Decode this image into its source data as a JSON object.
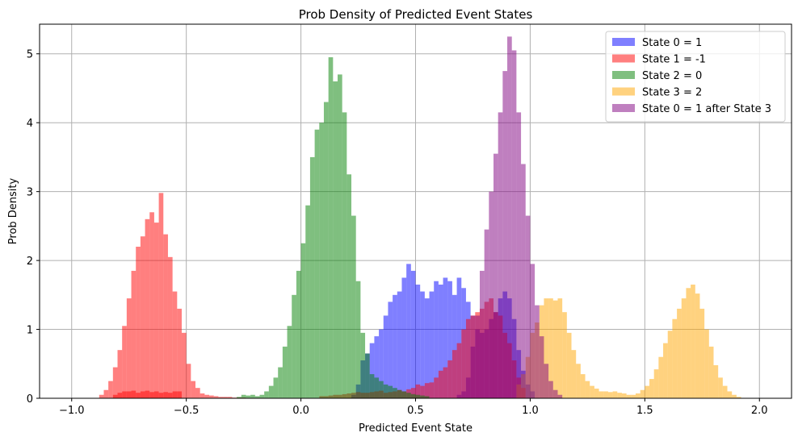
{
  "chart_data": {
    "type": "histogram",
    "title": "Prob Density of Predicted Event States",
    "xlabel": "Predicted Event State",
    "ylabel": "Prob Density",
    "xlim": [
      -1.14,
      2.14
    ],
    "ylim": [
      0,
      5.43
    ],
    "xticks": [
      -1.0,
      -0.5,
      0.0,
      0.5,
      1.0,
      1.5,
      2.0
    ],
    "xtick_labels": [
      "−1.0",
      "−0.5",
      "0.0",
      "0.5",
      "1.0",
      "1.5",
      "2.0"
    ],
    "yticks": [
      0,
      1,
      2,
      3,
      4,
      5
    ],
    "ytick_labels": [
      "0",
      "1",
      "2",
      "3",
      "4",
      "5"
    ],
    "grid": true,
    "legend_position": "top-right",
    "bin_width": 0.02,
    "series": [
      {
        "name": "State 0 = 1",
        "color": "#0000ff",
        "opacity": 0.5,
        "bin_start": 0.22,
        "values": [
          0.05,
          0.2,
          0.55,
          0.65,
          0.8,
          0.9,
          1.0,
          1.2,
          1.4,
          1.5,
          1.55,
          1.75,
          1.95,
          1.85,
          1.65,
          1.55,
          1.45,
          1.55,
          1.7,
          1.65,
          1.75,
          1.7,
          1.5,
          1.75,
          1.6,
          1.4,
          1.2,
          1.0,
          0.95,
          1.0,
          1.15,
          1.25,
          1.45,
          1.55,
          1.45,
          1.15,
          0.7,
          0.4,
          0.2,
          0.1
        ]
      },
      {
        "name": "State 1 = -1",
        "color": "#ff0000",
        "opacity": 0.5,
        "bin_start": -0.88,
        "values": [
          0.05,
          0.12,
          0.25,
          0.45,
          0.7,
          1.05,
          1.45,
          1.85,
          2.2,
          2.35,
          2.6,
          2.7,
          2.55,
          2.98,
          2.38,
          2.05,
          1.55,
          1.3,
          0.95,
          0.5,
          0.25,
          0.15,
          0.07,
          0.05,
          0.04,
          0.03,
          0.02,
          0.02,
          0.02,
          0.01,
          0.01,
          0.01
        ],
        "tail_bin_start": -0.82,
        "tail_values": [
          0.05,
          0.08,
          0.1,
          0.1,
          0.11,
          0.08,
          0.1,
          0.11,
          0.09,
          0.1,
          0.08,
          0.09,
          0.08,
          0.1,
          0.1
        ],
        "mid_bin_start": 0.08,
        "mid_values": [
          0.03,
          0.03,
          0.04,
          0.05,
          0.05,
          0.06,
          0.07,
          0.08,
          0.09,
          0.08,
          0.08,
          0.09,
          0.1,
          0.11,
          0.08,
          0.09,
          0.1,
          0.12,
          0.1,
          0.13,
          0.15,
          0.2,
          0.18,
          0.22,
          0.23,
          0.3,
          0.4,
          0.45,
          0.55,
          0.7,
          0.8,
          1.0,
          1.15,
          1.2,
          1.25,
          1.3,
          1.4,
          1.45,
          1.25,
          1.2,
          0.95,
          0.8,
          0.55,
          0.3,
          0.15
        ]
      },
      {
        "name": "State 2 = 0",
        "color": "#008000",
        "opacity": 0.5,
        "bin_start": -0.28,
        "values": [
          0.02,
          0.05,
          0.04,
          0.05,
          0.03,
          0.05,
          0.1,
          0.18,
          0.3,
          0.45,
          0.75,
          1.05,
          1.5,
          1.85,
          2.25,
          2.8,
          3.5,
          3.9,
          4.0,
          4.3,
          4.95,
          4.6,
          4.7,
          4.15,
          3.25,
          2.65,
          1.7,
          0.95,
          0.65,
          0.35,
          0.3,
          0.25,
          0.2,
          0.18,
          0.15,
          0.12,
          0.1,
          0.08,
          0.06,
          0.05,
          0.04,
          0.03
        ]
      },
      {
        "name": "State 3 = 2",
        "color": "#ffa500",
        "opacity": 0.5,
        "bin_start": 0.94,
        "values": [
          0.2,
          0.35,
          0.6,
          0.95,
          1.1,
          1.35,
          1.45,
          1.45,
          1.42,
          1.45,
          1.25,
          0.95,
          0.7,
          0.5,
          0.35,
          0.25,
          0.18,
          0.14,
          0.1,
          0.1,
          0.09,
          0.1,
          0.08,
          0.07,
          0.05,
          0.05,
          0.07,
          0.12,
          0.18,
          0.28,
          0.42,
          0.6,
          0.8,
          0.98,
          1.15,
          1.3,
          1.45,
          1.6,
          1.65,
          1.52,
          1.3,
          1.0,
          0.75,
          0.48,
          0.3,
          0.18,
          0.1,
          0.05,
          0.02
        ]
      },
      {
        "name": "State 0 = 1 after State 3",
        "color": "#800080",
        "opacity": 0.5,
        "bin_start": 0.68,
        "values": [
          0.05,
          0.1,
          0.3,
          0.75,
          1.2,
          1.85,
          2.45,
          3.0,
          3.55,
          4.15,
          4.75,
          5.25,
          5.05,
          4.15,
          3.4,
          2.65,
          1.95,
          1.35,
          0.9,
          0.5,
          0.25,
          0.12,
          0.05
        ]
      }
    ]
  }
}
